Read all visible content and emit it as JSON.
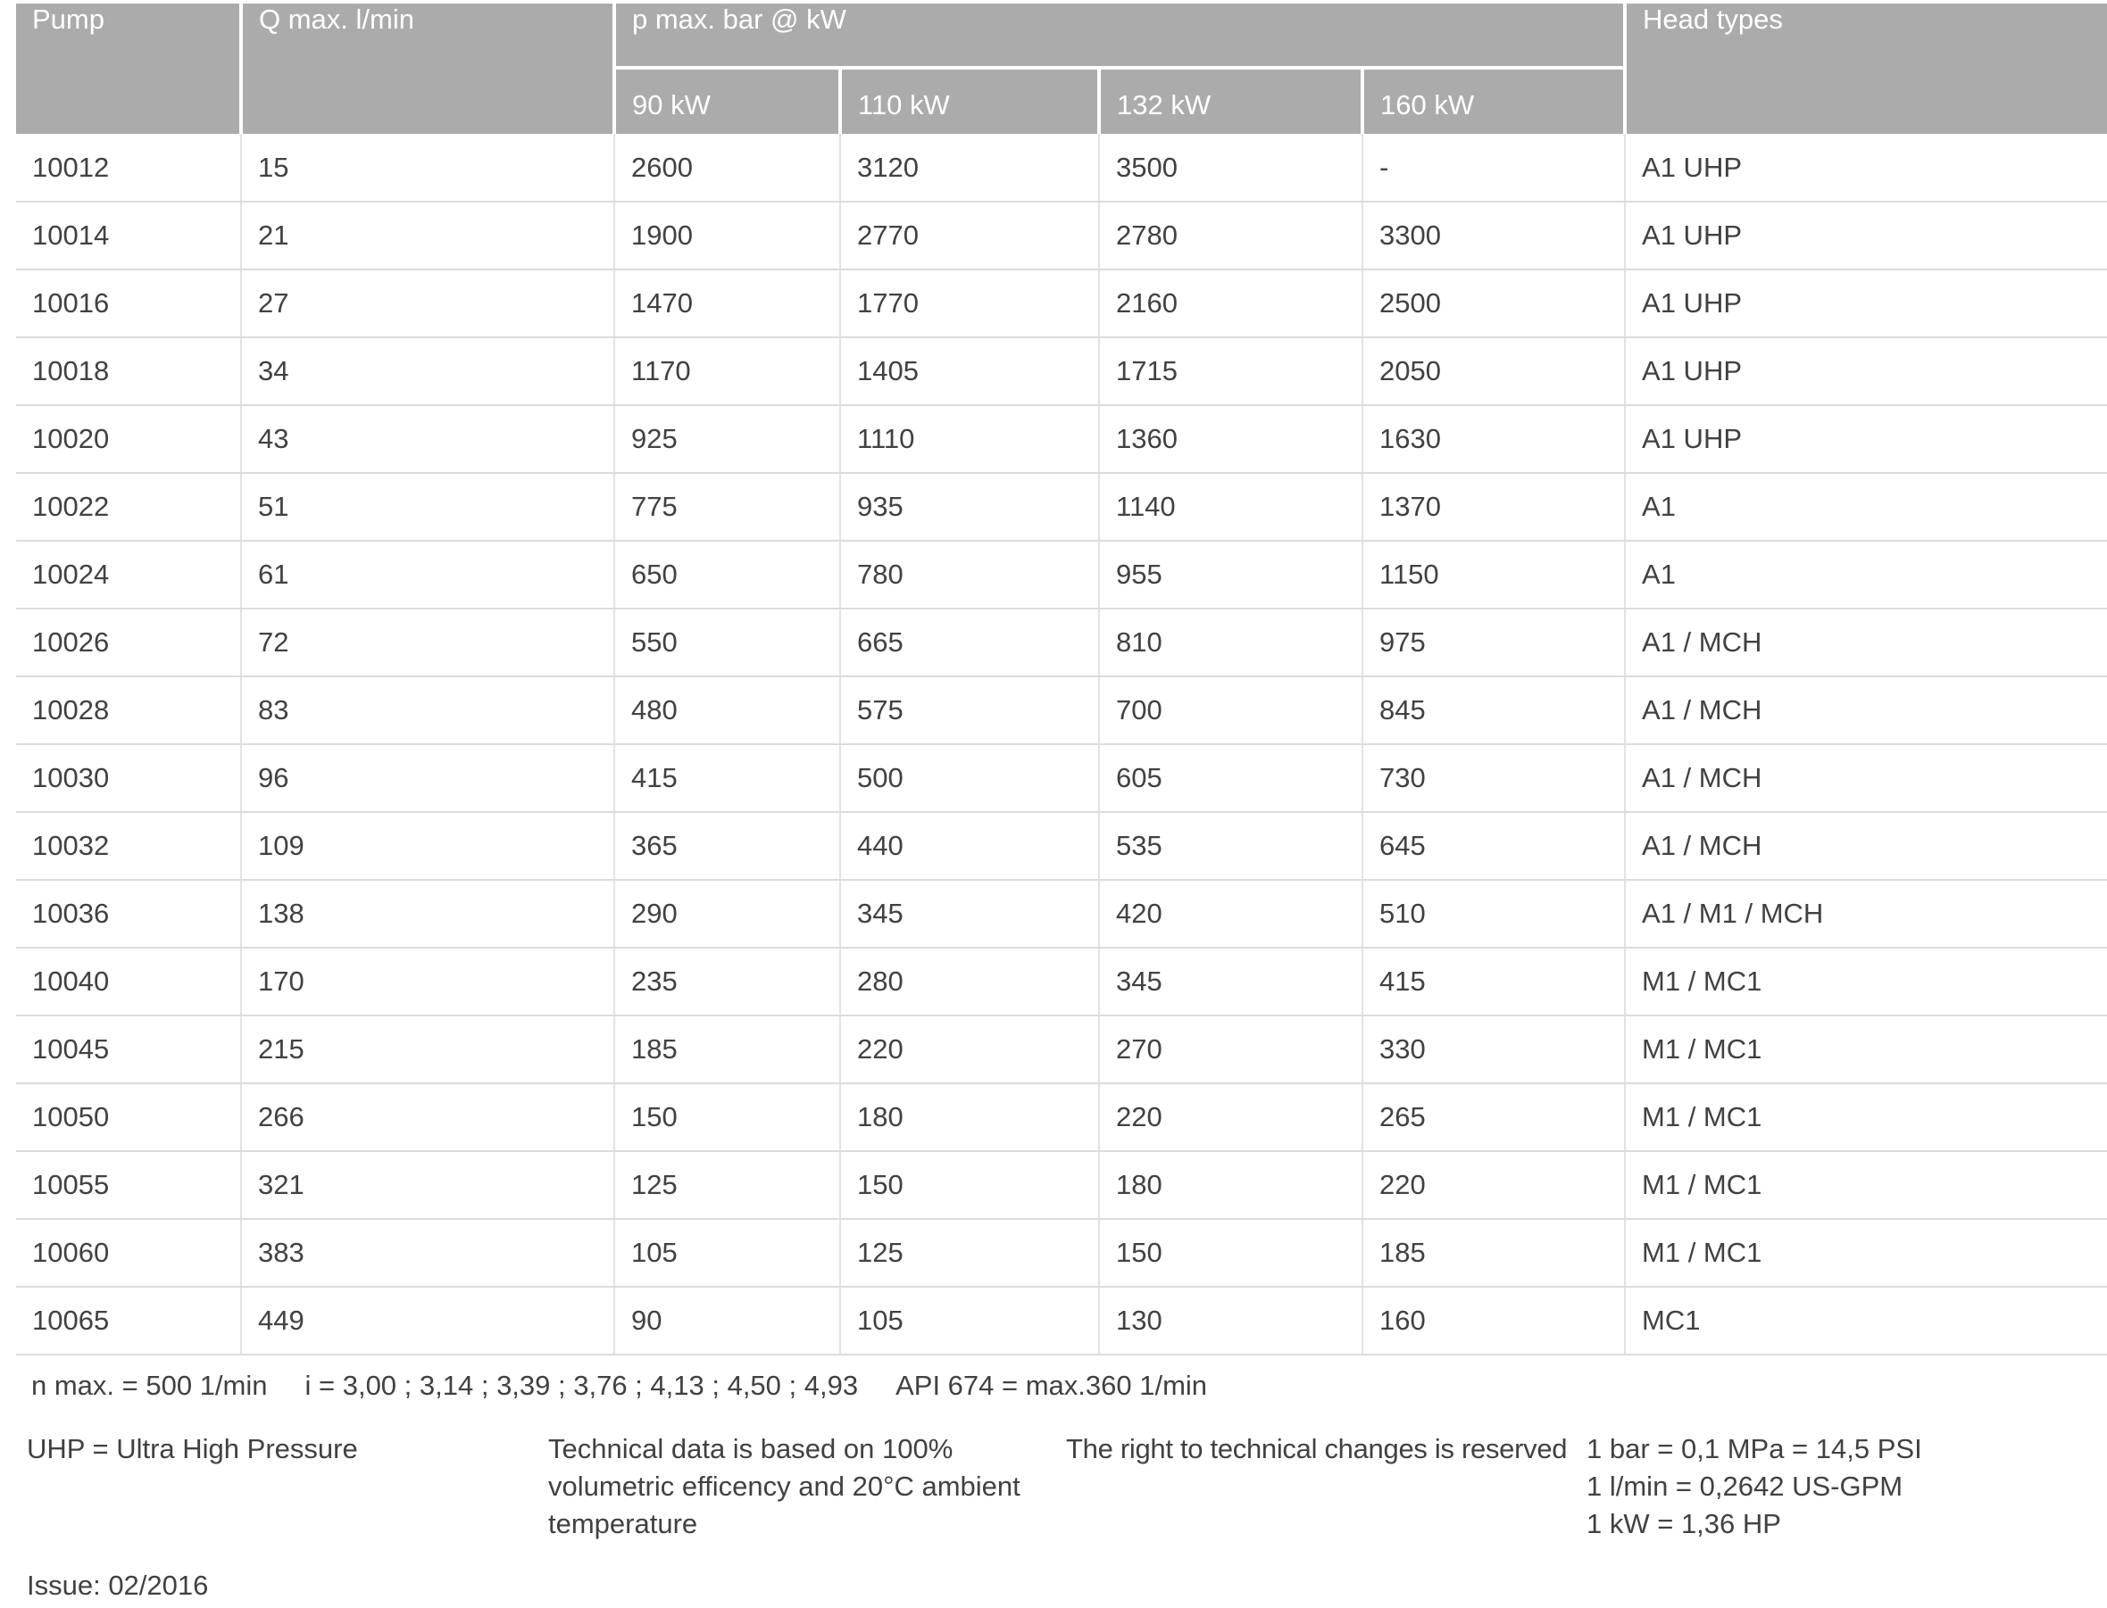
{
  "table": {
    "header": {
      "pump": "Pump",
      "qmax": "Q max. l/min",
      "pmax_group": "p max. bar @ kW",
      "kw": [
        "90 kW",
        "110 kW",
        "132 kW",
        "160 kW"
      ],
      "head_types": "Head types"
    },
    "rows": [
      {
        "pump": "10012",
        "qmax": "15",
        "kw": [
          "2600",
          "3120",
          "3500",
          "-"
        ],
        "head": "A1 UHP"
      },
      {
        "pump": "10014",
        "qmax": "21",
        "kw": [
          "1900",
          "2770",
          "2780",
          "3300"
        ],
        "head": "A1 UHP"
      },
      {
        "pump": "10016",
        "qmax": "27",
        "kw": [
          "1470",
          "1770",
          "2160",
          "2500"
        ],
        "head": "A1 UHP"
      },
      {
        "pump": "10018",
        "qmax": "34",
        "kw": [
          "1170",
          "1405",
          "1715",
          "2050"
        ],
        "head": "A1 UHP"
      },
      {
        "pump": "10020",
        "qmax": "43",
        "kw": [
          "925",
          "1110",
          "1360",
          "1630"
        ],
        "head": "A1 UHP"
      },
      {
        "pump": "10022",
        "qmax": "51",
        "kw": [
          "775",
          "935",
          "1140",
          "1370"
        ],
        "head": "A1"
      },
      {
        "pump": "10024",
        "qmax": "61",
        "kw": [
          "650",
          "780",
          "955",
          "1150"
        ],
        "head": "A1"
      },
      {
        "pump": "10026",
        "qmax": "72",
        "kw": [
          "550",
          "665",
          "810",
          "975"
        ],
        "head": "A1 / MCH"
      },
      {
        "pump": "10028",
        "qmax": "83",
        "kw": [
          "480",
          "575",
          "700",
          "845"
        ],
        "head": "A1 / MCH"
      },
      {
        "pump": "10030",
        "qmax": "96",
        "kw": [
          "415",
          "500",
          "605",
          "730"
        ],
        "head": "A1 / MCH"
      },
      {
        "pump": "10032",
        "qmax": "109",
        "kw": [
          "365",
          "440",
          "535",
          "645"
        ],
        "head": "A1 / MCH"
      },
      {
        "pump": "10036",
        "qmax": "138",
        "kw": [
          "290",
          "345",
          "420",
          "510"
        ],
        "head": "A1 / M1 / MCH"
      },
      {
        "pump": "10040",
        "qmax": "170",
        "kw": [
          "235",
          "280",
          "345",
          "415"
        ],
        "head": "M1 / MC1"
      },
      {
        "pump": "10045",
        "qmax": "215",
        "kw": [
          "185",
          "220",
          "270",
          "330"
        ],
        "head": "M1 / MC1"
      },
      {
        "pump": "10050",
        "qmax": "266",
        "kw": [
          "150",
          "180",
          "220",
          "265"
        ],
        "head": "M1 / MC1"
      },
      {
        "pump": "10055",
        "qmax": "321",
        "kw": [
          "125",
          "150",
          "180",
          "220"
        ],
        "head": "M1 / MC1"
      },
      {
        "pump": "10060",
        "qmax": "383",
        "kw": [
          "105",
          "125",
          "150",
          "185"
        ],
        "head": "M1 / MC1"
      },
      {
        "pump": "10065",
        "qmax": "449",
        "kw": [
          "90",
          "105",
          "130",
          "160"
        ],
        "head": "MC1"
      }
    ]
  },
  "notes": {
    "n_max": "n max. = 500 1/min",
    "i_ratios": "i = 3,00 ; 3,14 ; 3,39 ; 3,76 ; 4,13 ; 4,50 ; 4,93",
    "api": "API 674 = max.360 1/min"
  },
  "legend": {
    "uhp": "UHP = Ultra High Pressure",
    "technical": "Technical data is based on 100% volumetric efficency and 20°C ambient temperature",
    "rights": "The right to technical changes is reserved",
    "conversions": [
      "1 bar = 0,1 MPa = 14,5 PSI",
      "1 l/min = 0,2642 US-GPM",
      "1 kW = 1,36 HP"
    ]
  },
  "issue": "Issue: 02/2016",
  "colors": {
    "header_bg": "#ababab",
    "header_text": "#ffffff",
    "body_text": "#414141",
    "row_border": "#dcdcdc",
    "column_border": "#e3e3e3"
  }
}
